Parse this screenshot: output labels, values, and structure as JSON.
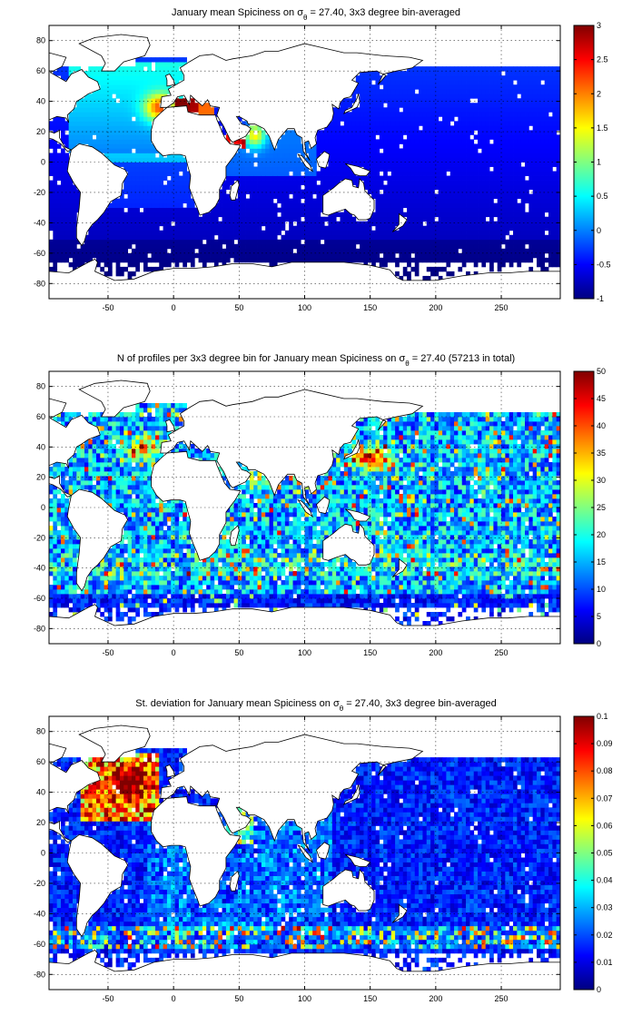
{
  "chart_data": [
    {
      "type": "heatmap",
      "title_prefix": "January mean Spiciness on ",
      "title_sigma": "σ",
      "title_sub": "θ",
      "title_suffix": " = 27.40, 3x3 degree bin-averaged",
      "xlim": [
        -95,
        295
      ],
      "ylim": [
        -90,
        90
      ],
      "xticks": [
        -50,
        0,
        50,
        100,
        150,
        200,
        250
      ],
      "yticks": [
        80,
        60,
        40,
        20,
        0,
        -20,
        -40,
        -60,
        -80
      ],
      "grid": true,
      "colorbar": {
        "range": [
          -1,
          3
        ],
        "ticks": [
          3,
          2.5,
          2,
          1.5,
          1,
          0.5,
          0,
          -0.5,
          -1
        ]
      },
      "field": "spice"
    },
    {
      "type": "heatmap",
      "title_prefix": "N of profiles per 3x3 degree bin for January mean Spiciness on ",
      "title_sigma": "σ",
      "title_sub": "θ",
      "title_suffix": " = 27.40 (57213 in total)",
      "xlim": [
        -95,
        295
      ],
      "ylim": [
        -90,
        90
      ],
      "xticks": [
        -50,
        0,
        50,
        100,
        150,
        200,
        250
      ],
      "yticks": [
        80,
        60,
        40,
        20,
        0,
        -20,
        -40,
        -60,
        -80
      ],
      "grid": true,
      "colorbar": {
        "range": [
          0,
          50
        ],
        "ticks": [
          50,
          45,
          40,
          35,
          30,
          25,
          20,
          15,
          10,
          5,
          0
        ]
      },
      "field": "count"
    },
    {
      "type": "heatmap",
      "title_prefix": "St. deviation for January mean Spiciness on ",
      "title_sigma": "σ",
      "title_sub": "θ",
      "title_suffix": " = 27.40, 3x3 degree bin-averaged",
      "xlim": [
        -95,
        295
      ],
      "ylim": [
        -90,
        90
      ],
      "xticks": [
        -50,
        0,
        50,
        100,
        150,
        200,
        250
      ],
      "yticks": [
        80,
        60,
        40,
        20,
        0,
        -20,
        -40,
        -60,
        -80
      ],
      "grid": true,
      "colorbar": {
        "range": [
          0,
          0.1
        ],
        "ticks": [
          0.1,
          0.09,
          0.08,
          0.07,
          0.06,
          0.05,
          0.04,
          0.03,
          0.02,
          0.01,
          0
        ]
      },
      "field": "std"
    }
  ]
}
